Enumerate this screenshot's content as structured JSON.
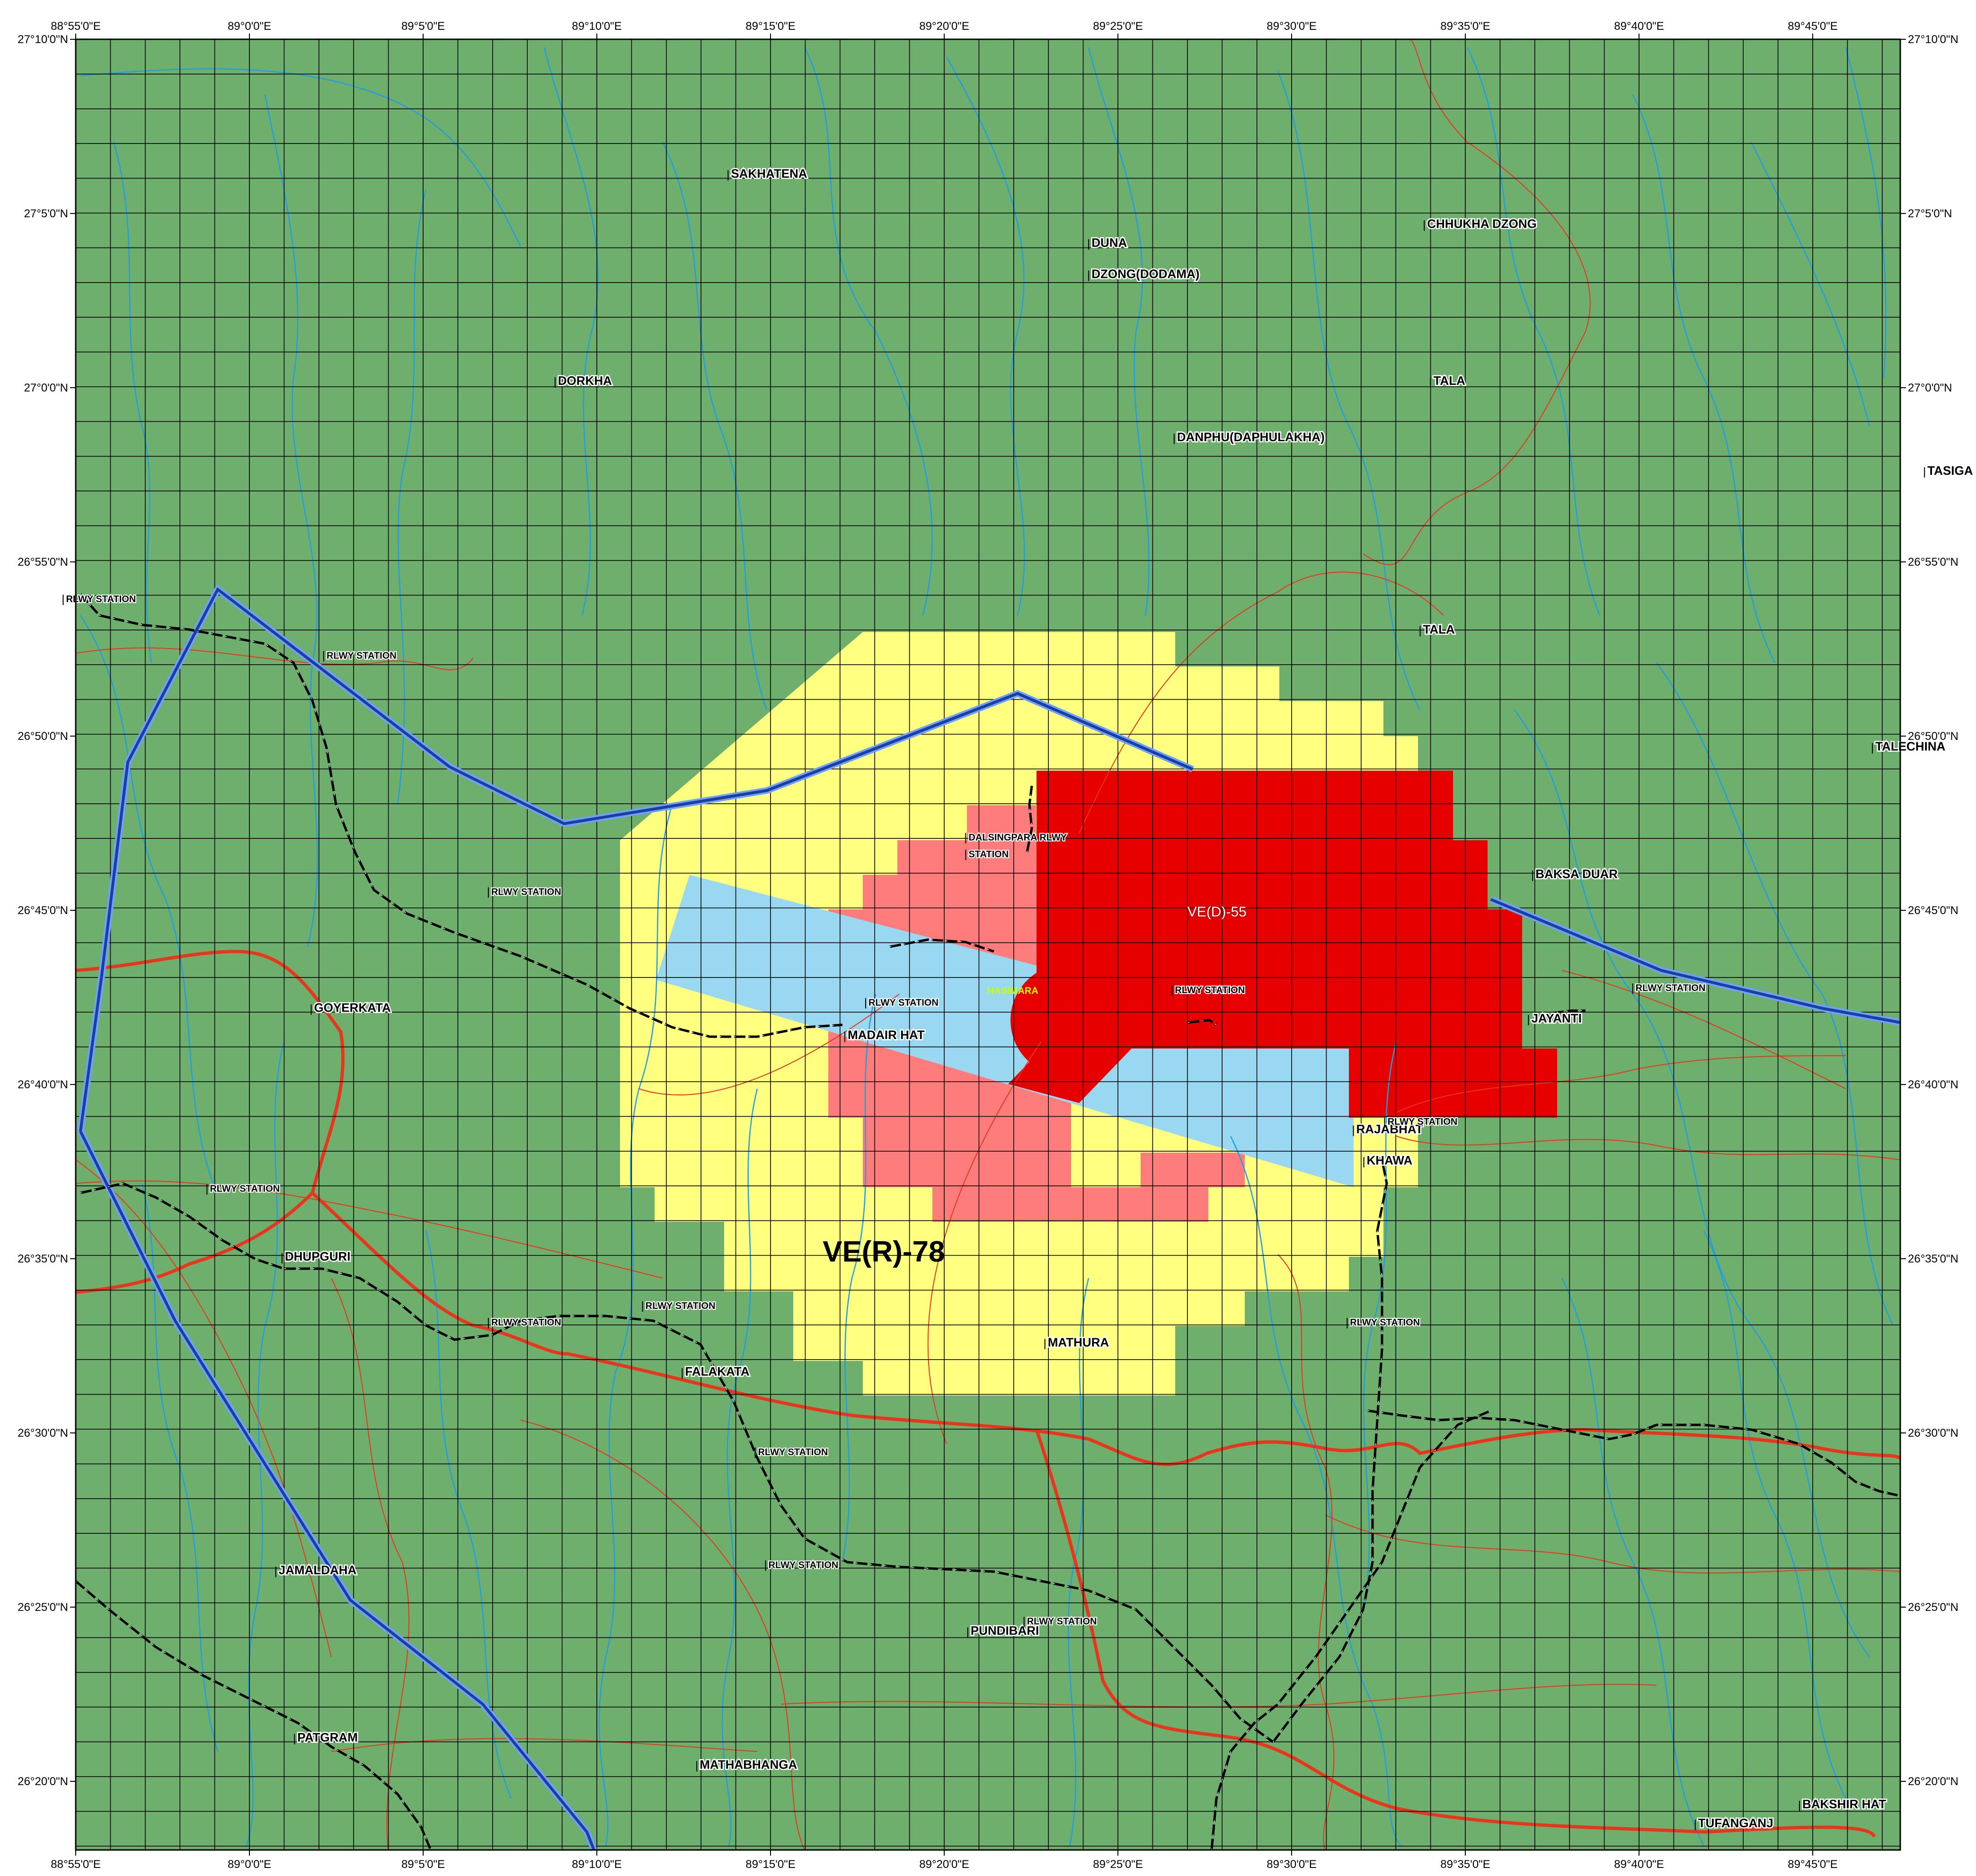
{
  "map": {
    "colors": {
      "land": "#6faf6e",
      "grid": "#000000",
      "yellow_zone": "#ffff80",
      "pink_zone": "#ff7c7c",
      "red_zone": "#e60000",
      "blue_sector": "#99d8f0",
      "river": "#1f9fe0",
      "road": "#e8361d",
      "border": "#1a3f9e"
    },
    "lon_ticks": [
      "88°55'0\"E",
      "89°0'0\"E",
      "89°5'0\"E",
      "89°10'0\"E",
      "89°15'0\"E",
      "89°20'0\"E",
      "89°25'0\"E",
      "89°30'0\"E",
      "89°35'0\"E",
      "89°40'0\"E",
      "89°45'0\"E"
    ],
    "lat_ticks": [
      "27°10'0\"N",
      "27°5'0\"N",
      "27°0'0\"N",
      "26°55'0\"N",
      "26°50'0\"N",
      "26°45'0\"N",
      "26°40'0\"N",
      "26°35'0\"N",
      "26°30'0\"N",
      "26°25'0\"N",
      "26°20'0\"N"
    ],
    "zones": {
      "restricted": "VE(R)-78",
      "danger": "VE(D)-55",
      "base": "HASIMARA"
    },
    "places": [
      {
        "id": "sakhatena",
        "name": "SAKHATENA",
        "lon": 89.231,
        "lat": 27.104
      },
      {
        "id": "chhukha-dzong",
        "name": "CHHUKHA DZONG",
        "lon": 89.565,
        "lat": 27.08
      },
      {
        "id": "duna-dzong-1",
        "name": "DUNA",
        "lon": 89.404,
        "lat": 27.071
      },
      {
        "id": "duna-dzong-2",
        "name": "DZONG(DODAMA)",
        "lon": 89.404,
        "lat": 27.056
      },
      {
        "id": "dorkha",
        "name": "DORKHA",
        "lon": 89.148,
        "lat": 27.005
      },
      {
        "id": "tala-1",
        "name": "TALA",
        "lon": 89.568,
        "lat": 27.005
      },
      {
        "id": "danphu",
        "name": "DANPHU(DAPHULAKHA)",
        "lon": 89.445,
        "lat": 26.978
      },
      {
        "id": "tasiga",
        "name": "TASIGA",
        "lon": 89.805,
        "lat": 26.962
      },
      {
        "id": "tala-2",
        "name": "TALA",
        "lon": 89.563,
        "lat": 26.886
      },
      {
        "id": "talechina",
        "name": "TALECHINA",
        "lon": 89.78,
        "lat": 26.83
      },
      {
        "id": "baksa-duar",
        "name": "BAKSA DUAR",
        "lon": 89.617,
        "lat": 26.769
      },
      {
        "id": "goyerkata",
        "name": "GOYERKATA",
        "lon": 89.031,
        "lat": 26.705
      },
      {
        "id": "madair-hat",
        "name": "MADAIR HAT",
        "lon": 89.287,
        "lat": 26.692
      },
      {
        "id": "jayanti",
        "name": "JAYANTI",
        "lon": 89.615,
        "lat": 26.7
      },
      {
        "id": "rajabhat-khawa-1",
        "name": "RAJABHAT",
        "lon": 89.531,
        "lat": 26.647
      },
      {
        "id": "rajabhat-khawa-2",
        "name": "KHAWA",
        "lon": 89.536,
        "lat": 26.632
      },
      {
        "id": "dhupguri",
        "name": "DHUPGURI",
        "lon": 89.017,
        "lat": 26.586
      },
      {
        "id": "mathura",
        "name": "MATHURA",
        "lon": 89.383,
        "lat": 26.545
      },
      {
        "id": "falakata",
        "name": "FALAKATA",
        "lon": 89.209,
        "lat": 26.531
      },
      {
        "id": "jamaldaha",
        "name": "JAMALDAHA",
        "lon": 89.014,
        "lat": 26.436
      },
      {
        "id": "pundibari",
        "name": "PUNDIBARI",
        "lon": 89.346,
        "lat": 26.407
      },
      {
        "id": "patgram",
        "name": "PATGRAM",
        "lon": 89.023,
        "lat": 26.356
      },
      {
        "id": "mathabhanga",
        "name": "MATHABHANGA",
        "lon": 89.216,
        "lat": 26.343
      },
      {
        "id": "tufanganj",
        "name": "TUFANGANJ",
        "lon": 89.695,
        "lat": 26.315
      },
      {
        "id": "bakshir-hat",
        "name": "BAKSHIR HAT",
        "lon": 89.745,
        "lat": 26.324
      }
    ],
    "stations": [
      {
        "id": "rlwy-1",
        "name": "RLWY STATION",
        "lon": 88.912,
        "lat": 26.901
      },
      {
        "id": "rlwy-2",
        "name": "RLWY STATION",
        "lon": 89.037,
        "lat": 26.874
      },
      {
        "id": "rlwy-3",
        "name": "RLWY STATION",
        "lon": 89.116,
        "lat": 26.761
      },
      {
        "id": "dalsingpara-1",
        "name": "DALSINGPARA RLWY",
        "lon": 89.345,
        "lat": 26.787
      },
      {
        "id": "dalsingpara-2",
        "name": "STATION",
        "lon": 89.345,
        "lat": 26.779
      },
      {
        "id": "rlwy-4",
        "name": "RLWY STATION",
        "lon": 89.297,
        "lat": 26.708
      },
      {
        "id": "rlwy-5",
        "name": "RLWY STATION",
        "lon": 89.444,
        "lat": 26.714
      },
      {
        "id": "rlwy-6",
        "name": "RLWY STATION",
        "lon": 89.665,
        "lat": 26.715
      },
      {
        "id": "rlwy-7",
        "name": "RLWY STATION",
        "lon": 89.546,
        "lat": 26.651
      },
      {
        "id": "rlwy-8",
        "name": "RLWY STATION",
        "lon": 88.981,
        "lat": 26.619
      },
      {
        "id": "rlwy-9",
        "name": "RLWY STATION",
        "lon": 89.116,
        "lat": 26.555
      },
      {
        "id": "rlwy-10",
        "name": "RLWY STATION",
        "lon": 89.19,
        "lat": 26.563
      },
      {
        "id": "rlwy-11",
        "name": "RLWY STATION",
        "lon": 89.528,
        "lat": 26.555
      },
      {
        "id": "rlwy-12",
        "name": "RLWY STATION",
        "lon": 89.244,
        "lat": 26.493
      },
      {
        "id": "rlwy-13",
        "name": "RLWY STATION",
        "lon": 89.249,
        "lat": 26.439
      },
      {
        "id": "rlwy-14",
        "name": "RLWY STATION",
        "lon": 89.373,
        "lat": 26.412
      }
    ]
  }
}
